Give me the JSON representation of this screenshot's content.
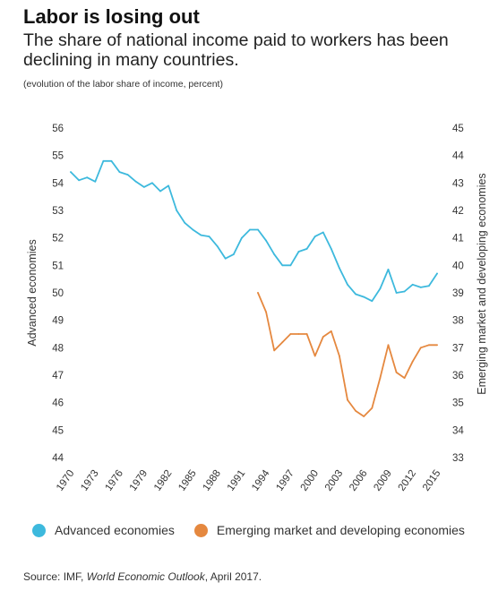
{
  "title": "Labor is losing out",
  "subtitle": "The share of national income paid to workers has been declining in many countries.",
  "note": "(evolution of the labor share of income, percent)",
  "source": {
    "prefix": "Source: IMF, ",
    "publication": "World Economic Outlook",
    "suffix": ", April 2017."
  },
  "colors": {
    "advanced": "#3db9dd",
    "emerging": "#e5883f",
    "text": "#333333"
  },
  "chart_data": {
    "type": "line",
    "ylabel_left": "Advanced economies",
    "ylabel_right": "Emerging market and developing economies",
    "ylim_left": [
      44,
      56
    ],
    "ylim_right": [
      33,
      45
    ],
    "yticks_left": [
      "44",
      "45",
      "46",
      "47",
      "48",
      "49",
      "50",
      "51",
      "52",
      "53",
      "54",
      "55",
      "56"
    ],
    "yticks_right": [
      "33",
      "34",
      "35",
      "36",
      "37",
      "38",
      "39",
      "40",
      "41",
      "42",
      "43",
      "44",
      "45"
    ],
    "xlim": [
      1970,
      2015
    ],
    "xticks": [
      "1970",
      "1973",
      "1976",
      "1979",
      "1982",
      "1985",
      "1988",
      "1991",
      "1994",
      "1997",
      "2000",
      "2003",
      "2006",
      "2009",
      "2012",
      "2015"
    ],
    "grid": false,
    "legend_position": "bottom",
    "series": [
      {
        "name": "Advanced economies",
        "axis": "left",
        "x": [
          1970,
          1971,
          1972,
          1973,
          1974,
          1975,
          1976,
          1977,
          1978,
          1979,
          1980,
          1981,
          1982,
          1983,
          1984,
          1985,
          1986,
          1987,
          1988,
          1989,
          1990,
          1991,
          1992,
          1993,
          1994,
          1995,
          1996,
          1997,
          1998,
          1999,
          2000,
          2001,
          2002,
          2003,
          2004,
          2005,
          2006,
          2007,
          2008,
          2009,
          2010,
          2011,
          2012,
          2013,
          2014,
          2015
        ],
        "y": [
          54.4,
          54.1,
          54.2,
          54.05,
          54.8,
          54.8,
          54.4,
          54.3,
          54.05,
          53.85,
          54.0,
          53.7,
          53.9,
          53.0,
          52.55,
          52.3,
          52.1,
          52.05,
          51.7,
          51.25,
          51.4,
          52.0,
          52.3,
          52.3,
          51.9,
          51.4,
          51.0,
          51.0,
          51.5,
          51.6,
          52.05,
          52.2,
          51.6,
          50.9,
          50.3,
          49.95,
          49.85,
          49.7,
          50.15,
          50.85,
          50.0,
          50.05,
          50.3,
          50.2,
          50.25,
          50.7
        ]
      },
      {
        "name": "Emerging market and developing economies",
        "axis": "right",
        "x": [
          1993,
          1994,
          1995,
          1996,
          1997,
          1998,
          1999,
          2000,
          2001,
          2002,
          2003,
          2004,
          2005,
          2006,
          2007,
          2008,
          2009,
          2010,
          2011,
          2012,
          2013,
          2014,
          2015
        ],
        "y": [
          39.0,
          38.3,
          36.9,
          37.2,
          37.5,
          37.5,
          37.5,
          36.7,
          37.4,
          37.6,
          36.7,
          35.1,
          34.7,
          34.5,
          34.8,
          35.9,
          37.1,
          36.1,
          35.9,
          36.5,
          37.0,
          37.1,
          37.1
        ]
      }
    ]
  }
}
